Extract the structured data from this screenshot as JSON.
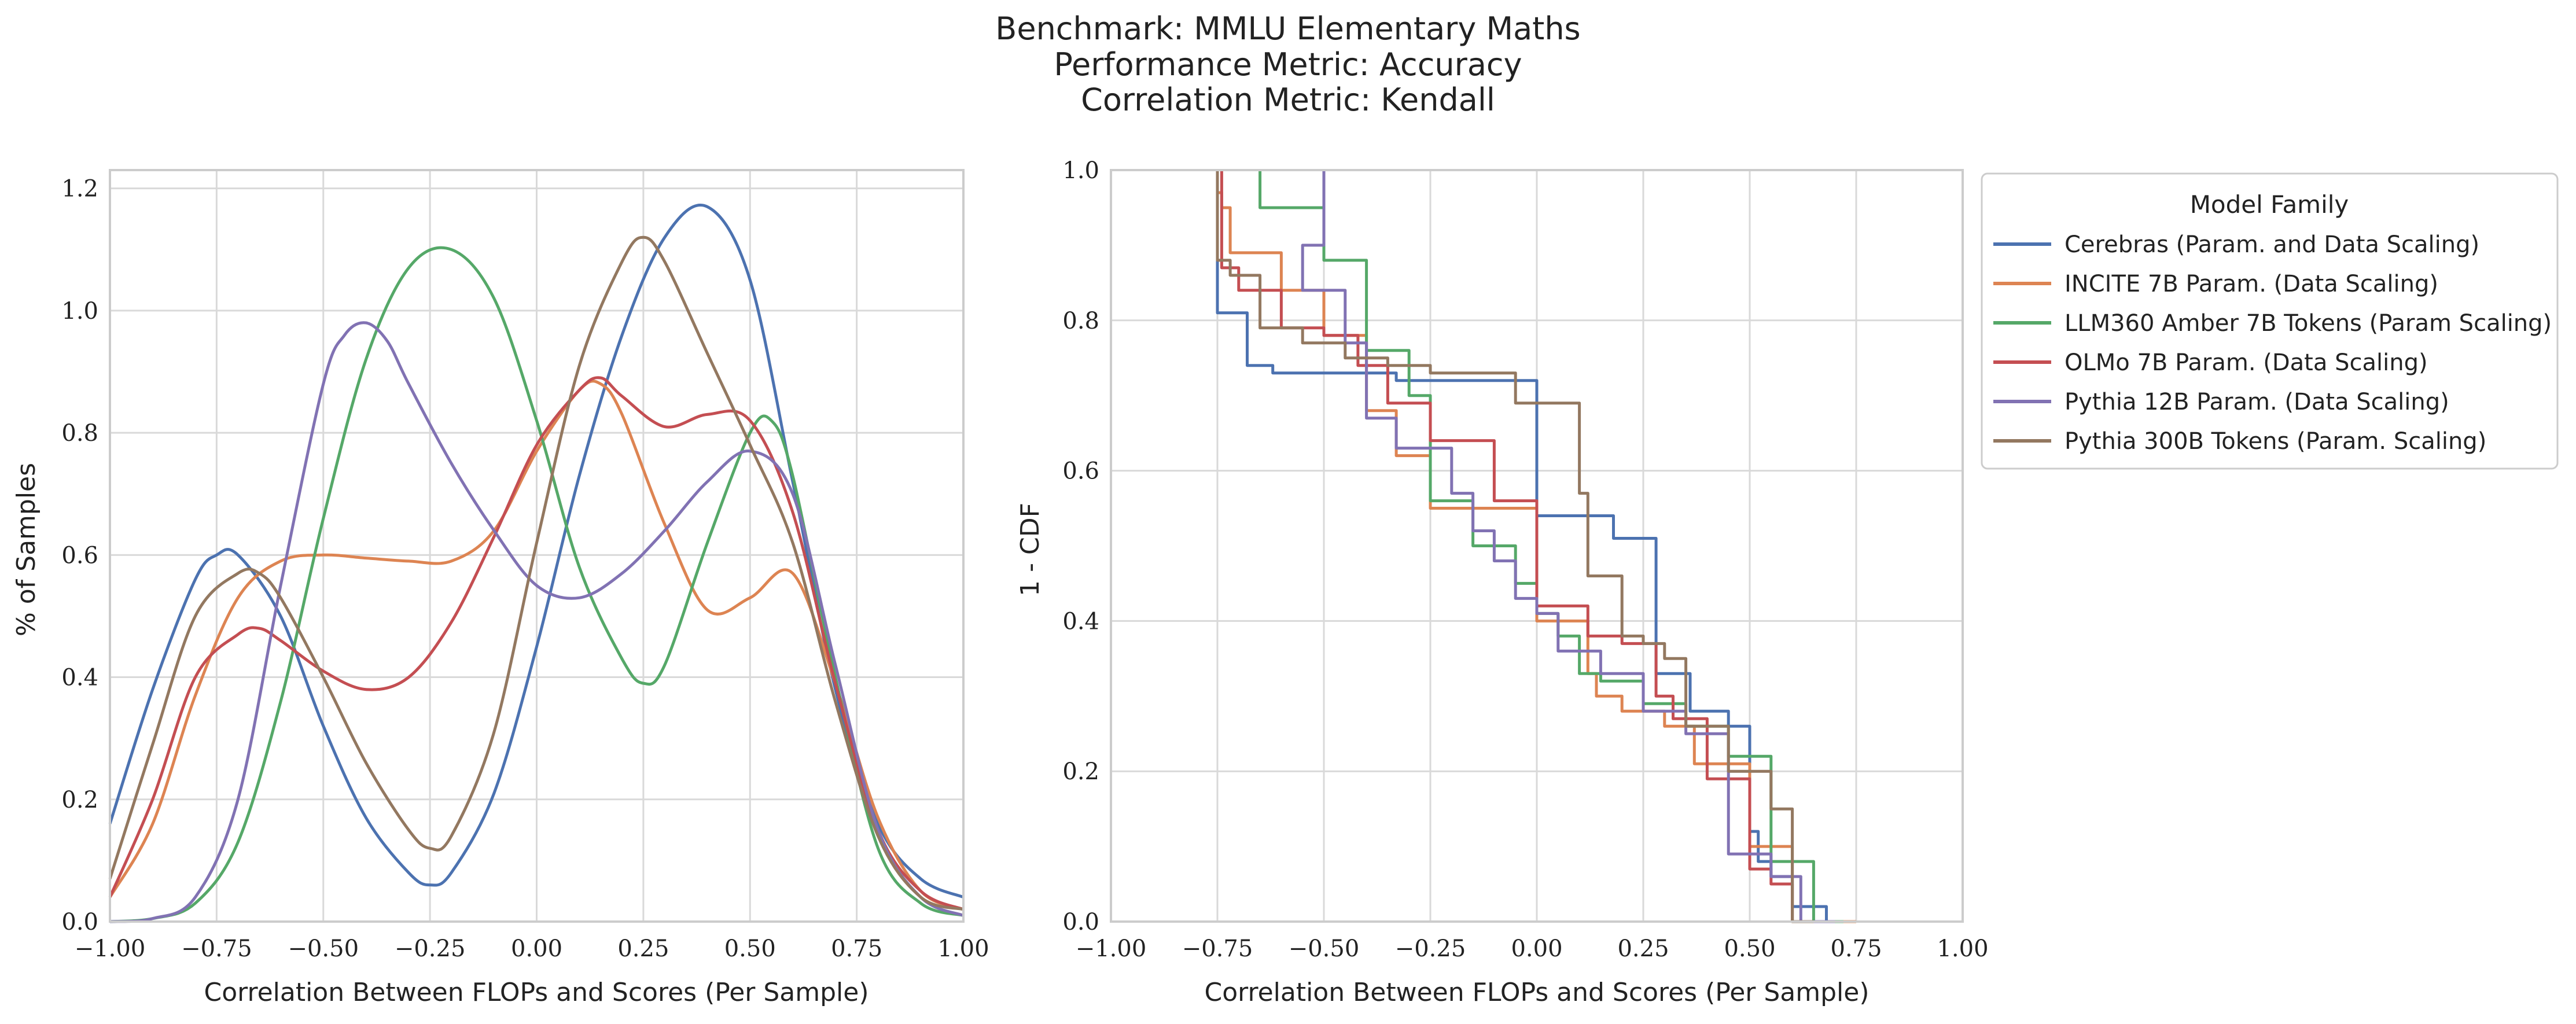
{
  "title_lines": [
    "Benchmark: MMLU Elementary Maths",
    "Performance Metric: Accuracy",
    "Correlation Metric: Kendall"
  ],
  "legend": {
    "title": "Model Family",
    "entries": [
      {
        "label": "Cerebras (Param. and Data Scaling)",
        "color": "#4c72b0"
      },
      {
        "label": "INCITE 7B Param. (Data Scaling)",
        "color": "#dd8452"
      },
      {
        "label": "LLM360 Amber 7B Tokens (Param Scaling)",
        "color": "#55a868"
      },
      {
        "label": "OLMo 7B Param. (Data Scaling)",
        "color": "#c44e52"
      },
      {
        "label": "Pythia 12B Param. (Data Scaling)",
        "color": "#8172b3"
      },
      {
        "label": "Pythia 300B Tokens (Param. Scaling)",
        "color": "#937860"
      }
    ],
    "placement": "outside-right-top"
  },
  "chart_data": [
    {
      "type": "line",
      "subtype": "kde",
      "xlabel": "Correlation Between FLOPs and Scores (Per Sample)",
      "ylabel": "% of Samples",
      "xlim": [
        -1.0,
        1.0
      ],
      "ylim": [
        0.0,
        1.23
      ],
      "xticks": [
        "−1.00",
        "−0.75",
        "−0.50",
        "−0.25",
        "0.00",
        "0.25",
        "0.50",
        "0.75",
        "1.00"
      ],
      "yticks": [
        "0.0",
        "0.2",
        "0.4",
        "0.6",
        "0.8",
        "1.0",
        "1.2"
      ],
      "grid": true,
      "series": [
        {
          "name": "Cerebras (Param. and Data Scaling)",
          "color": "#4c72b0",
          "x": [
            -1.0,
            -0.9,
            -0.8,
            -0.75,
            -0.7,
            -0.6,
            -0.5,
            -0.4,
            -0.3,
            -0.25,
            -0.2,
            -0.1,
            0.0,
            0.1,
            0.2,
            0.3,
            0.4,
            0.5,
            0.6,
            0.7,
            0.8,
            0.9,
            1.0
          ],
          "y": [
            0.16,
            0.38,
            0.56,
            0.6,
            0.6,
            0.5,
            0.32,
            0.17,
            0.08,
            0.06,
            0.08,
            0.21,
            0.45,
            0.73,
            0.96,
            1.12,
            1.17,
            1.05,
            0.72,
            0.38,
            0.16,
            0.07,
            0.04
          ]
        },
        {
          "name": "INCITE 7B Param. (Data Scaling)",
          "color": "#dd8452",
          "x": [
            -1.0,
            -0.9,
            -0.8,
            -0.7,
            -0.6,
            -0.5,
            -0.4,
            -0.3,
            -0.2,
            -0.1,
            0.0,
            0.1,
            0.15,
            0.2,
            0.3,
            0.4,
            0.5,
            0.6,
            0.7,
            0.8,
            0.9,
            1.0
          ],
          "y": [
            0.04,
            0.16,
            0.37,
            0.53,
            0.59,
            0.6,
            0.595,
            0.59,
            0.59,
            0.64,
            0.77,
            0.87,
            0.88,
            0.83,
            0.65,
            0.51,
            0.53,
            0.57,
            0.39,
            0.17,
            0.05,
            0.02
          ]
        },
        {
          "name": "LLM360 Amber 7B Tokens (Param Scaling)",
          "color": "#55a868",
          "x": [
            -1.0,
            -0.9,
            -0.8,
            -0.7,
            -0.6,
            -0.5,
            -0.4,
            -0.3,
            -0.2,
            -0.1,
            0.0,
            0.1,
            0.2,
            0.25,
            0.3,
            0.4,
            0.5,
            0.55,
            0.6,
            0.7,
            0.8,
            0.9,
            1.0
          ],
          "y": [
            0.0,
            0.005,
            0.03,
            0.13,
            0.36,
            0.66,
            0.92,
            1.07,
            1.1,
            1.02,
            0.82,
            0.58,
            0.43,
            0.39,
            0.42,
            0.62,
            0.8,
            0.82,
            0.73,
            0.4,
            0.12,
            0.03,
            0.01
          ]
        },
        {
          "name": "OLMo 7B Param. (Data Scaling)",
          "color": "#c44e52",
          "x": [
            -1.0,
            -0.9,
            -0.8,
            -0.7,
            -0.65,
            -0.6,
            -0.5,
            -0.4,
            -0.3,
            -0.2,
            -0.1,
            0.0,
            0.1,
            0.15,
            0.2,
            0.3,
            0.4,
            0.5,
            0.6,
            0.7,
            0.8,
            0.9,
            1.0
          ],
          "y": [
            0.04,
            0.2,
            0.4,
            0.47,
            0.48,
            0.46,
            0.41,
            0.38,
            0.4,
            0.49,
            0.63,
            0.78,
            0.87,
            0.89,
            0.86,
            0.81,
            0.83,
            0.82,
            0.67,
            0.39,
            0.15,
            0.05,
            0.02
          ]
        },
        {
          "name": "Pythia 12B Param. (Data Scaling)",
          "color": "#8172b3",
          "x": [
            -1.0,
            -0.9,
            -0.8,
            -0.7,
            -0.6,
            -0.5,
            -0.45,
            -0.4,
            -0.35,
            -0.3,
            -0.2,
            -0.1,
            0.0,
            0.1,
            0.2,
            0.3,
            0.4,
            0.5,
            0.6,
            0.7,
            0.8,
            0.9,
            1.0
          ],
          "y": [
            0.0,
            0.005,
            0.04,
            0.2,
            0.55,
            0.88,
            0.96,
            0.98,
            0.95,
            0.88,
            0.75,
            0.64,
            0.55,
            0.53,
            0.57,
            0.64,
            0.72,
            0.77,
            0.7,
            0.42,
            0.15,
            0.04,
            0.01
          ]
        },
        {
          "name": "Pythia 300B Tokens (Param. Scaling)",
          "color": "#937860",
          "x": [
            -1.0,
            -0.9,
            -0.8,
            -0.7,
            -0.65,
            -0.6,
            -0.5,
            -0.4,
            -0.3,
            -0.25,
            -0.2,
            -0.1,
            0.0,
            0.1,
            0.2,
            0.25,
            0.3,
            0.4,
            0.5,
            0.6,
            0.7,
            0.8,
            0.9,
            1.0
          ],
          "y": [
            0.07,
            0.29,
            0.5,
            0.57,
            0.57,
            0.53,
            0.4,
            0.26,
            0.15,
            0.12,
            0.14,
            0.31,
            0.62,
            0.91,
            1.08,
            1.12,
            1.08,
            0.93,
            0.78,
            0.62,
            0.36,
            0.14,
            0.04,
            0.02
          ]
        }
      ]
    },
    {
      "type": "line",
      "subtype": "step",
      "xlabel": "Correlation Between FLOPs and Scores (Per Sample)",
      "ylabel": "1 - CDF",
      "xlim": [
        -1.0,
        1.0
      ],
      "ylim": [
        0.0,
        1.0
      ],
      "xticks": [
        "−1.00",
        "−0.75",
        "−0.50",
        "−0.25",
        "0.00",
        "0.25",
        "0.50",
        "0.75",
        "1.00"
      ],
      "yticks": [
        "0.0",
        "0.2",
        "0.4",
        "0.6",
        "0.8",
        "1.0"
      ],
      "grid": true,
      "series": [
        {
          "name": "Cerebras (Param. and Data Scaling)",
          "color": "#4c72b0",
          "x": [
            -0.75,
            -0.75,
            -0.68,
            -0.62,
            -0.5,
            -0.33,
            0.0,
            0.18,
            0.28,
            0.36,
            0.45,
            0.5,
            0.52,
            0.55,
            0.6,
            0.68,
            0.75
          ],
          "y": [
            1.0,
            0.83,
            0.81,
            0.74,
            0.73,
            0.73,
            0.72,
            0.54,
            0.51,
            0.33,
            0.28,
            0.26,
            0.12,
            0.08,
            0.06,
            0.02,
            0.0
          ]
        },
        {
          "name": "INCITE 7B Param. (Data Scaling)",
          "color": "#dd8452",
          "x": [
            -0.75,
            -0.74,
            -0.72,
            -0.6,
            -0.5,
            -0.4,
            -0.33,
            -0.25,
            -0.1,
            0.0,
            0.12,
            0.14,
            0.2,
            0.3,
            0.37,
            0.43,
            0.5,
            0.6,
            0.75
          ],
          "y": [
            1.0,
            0.97,
            0.95,
            0.89,
            0.84,
            0.78,
            0.68,
            0.62,
            0.55,
            0.55,
            0.4,
            0.33,
            0.3,
            0.28,
            0.26,
            0.21,
            0.21,
            0.1,
            0.0
          ]
        },
        {
          "name": "LLM360 Amber 7B Tokens (Param Scaling)",
          "color": "#55a868",
          "x": [
            -0.65,
            -0.5,
            -0.4,
            -0.3,
            -0.25,
            -0.15,
            -0.05,
            0.0,
            0.05,
            0.1,
            0.15,
            0.25,
            0.35,
            0.45,
            0.55,
            0.65,
            0.72
          ],
          "y": [
            1.0,
            0.95,
            0.88,
            0.76,
            0.7,
            0.56,
            0.5,
            0.45,
            0.41,
            0.38,
            0.33,
            0.32,
            0.29,
            0.26,
            0.22,
            0.08,
            0.0
          ]
        },
        {
          "name": "OLMo 7B Param. (Data Scaling)",
          "color": "#c44e52",
          "x": [
            -0.74,
            -0.7,
            -0.6,
            -0.5,
            -0.42,
            -0.35,
            -0.25,
            -0.1,
            0.0,
            0.12,
            0.2,
            0.28,
            0.32,
            0.4,
            0.5,
            0.55,
            0.6,
            0.7
          ],
          "y": [
            1.0,
            0.87,
            0.84,
            0.79,
            0.78,
            0.74,
            0.69,
            0.64,
            0.56,
            0.42,
            0.38,
            0.37,
            0.3,
            0.27,
            0.19,
            0.07,
            0.05,
            0.0
          ]
        },
        {
          "name": "Pythia 12B Param. (Data Scaling)",
          "color": "#8172b3",
          "x": [
            -0.5,
            -0.55,
            -0.45,
            -0.4,
            -0.33,
            -0.2,
            -0.15,
            -0.1,
            -0.05,
            0.0,
            0.05,
            0.15,
            0.25,
            0.35,
            0.45,
            0.55,
            0.62,
            0.7
          ],
          "y": [
            1.0,
            0.9,
            0.84,
            0.77,
            0.67,
            0.63,
            0.57,
            0.52,
            0.48,
            0.43,
            0.41,
            0.36,
            0.33,
            0.28,
            0.25,
            0.09,
            0.06,
            0.0
          ]
        },
        {
          "name": "Pythia 300B Tokens (Param. Scaling)",
          "color": "#937860",
          "x": [
            -0.75,
            -0.72,
            -0.65,
            -0.55,
            -0.45,
            -0.35,
            -0.25,
            -0.15,
            -0.05,
            0.1,
            0.12,
            0.2,
            0.25,
            0.3,
            0.35,
            0.45,
            0.55,
            0.6,
            0.65
          ],
          "y": [
            1.0,
            0.88,
            0.86,
            0.79,
            0.77,
            0.75,
            0.74,
            0.73,
            0.73,
            0.69,
            0.57,
            0.46,
            0.38,
            0.37,
            0.35,
            0.26,
            0.2,
            0.15,
            0.0
          ]
        }
      ]
    }
  ]
}
